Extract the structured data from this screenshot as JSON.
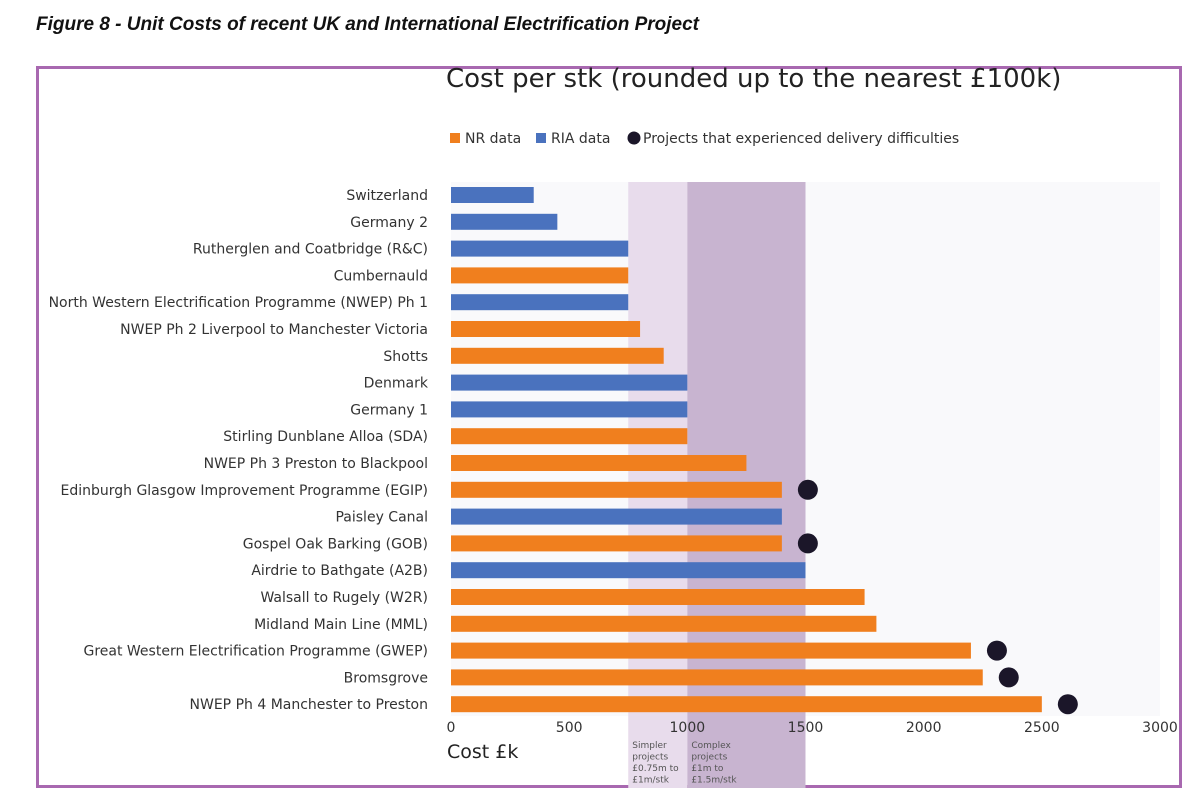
{
  "figure_title": "Figure 8 - Unit Costs of recent UK and International Electrification Project",
  "colors": {
    "nr": "#f07f1e",
    "ria": "#4a72be",
    "difficulty": "#1b1629",
    "band_simple": "#e8dcec",
    "band_complex": "#c8b4d0",
    "plot_bg": "#f9f9fb",
    "frame": "#a868b0"
  },
  "chart_data": {
    "type": "bar",
    "orientation": "horizontal",
    "title": "Cost per stk (rounded up to the nearest £100k)",
    "xlabel": "Cost £k",
    "xlim": [
      0,
      3000
    ],
    "xticks": [
      "0",
      "500",
      "1000",
      "1500",
      "2000",
      "2500",
      "3000"
    ],
    "grid": false,
    "legend": {
      "placement": "top",
      "entries": [
        {
          "key": "nr",
          "label": "NR data",
          "shape": "square"
        },
        {
          "key": "ria",
          "label": "RIA data",
          "shape": "square"
        },
        {
          "key": "difficulty",
          "label": "Projects that experienced delivery difficulties",
          "shape": "circle"
        }
      ]
    },
    "bands": [
      {
        "from": 750,
        "to": 1000,
        "label": [
          "Simpler",
          "projects",
          "£0.75m to",
          "£1m/stk"
        ],
        "color_key": "band_simple"
      },
      {
        "from": 1000,
        "to": 1500,
        "label": [
          "Complex",
          "projects",
          "£1m to",
          "£1.5m/stk"
        ],
        "color_key": "band_complex"
      }
    ],
    "bars": [
      {
        "label": "Switzerland",
        "value": 350,
        "source": "ria",
        "difficulty": false
      },
      {
        "label": "Germany 2",
        "value": 450,
        "source": "ria",
        "difficulty": false
      },
      {
        "label": "Rutherglen and Coatbridge (R&C)",
        "value": 750,
        "source": "ria",
        "difficulty": false
      },
      {
        "label": "Cumbernauld",
        "value": 750,
        "source": "nr",
        "difficulty": false
      },
      {
        "label": "North Western Electrification Programme (NWEP) Ph 1",
        "value": 750,
        "source": "ria",
        "difficulty": false
      },
      {
        "label": "NWEP Ph 2 Liverpool to Manchester Victoria",
        "value": 800,
        "source": "nr",
        "difficulty": false
      },
      {
        "label": "Shotts",
        "value": 900,
        "source": "nr",
        "difficulty": false
      },
      {
        "label": "Denmark",
        "value": 1000,
        "source": "ria",
        "difficulty": false
      },
      {
        "label": "Germany 1",
        "value": 1000,
        "source": "ria",
        "difficulty": false
      },
      {
        "label": "Stirling Dunblane Alloa (SDA)",
        "value": 1000,
        "source": "nr",
        "difficulty": false
      },
      {
        "label": "NWEP Ph 3 Preston to Blackpool",
        "value": 1250,
        "source": "nr",
        "difficulty": false
      },
      {
        "label": "Edinburgh Glasgow Improvement Programme (EGIP)",
        "value": 1400,
        "source": "nr",
        "difficulty": true
      },
      {
        "label": "Paisley Canal",
        "value": 1400,
        "source": "ria",
        "difficulty": false
      },
      {
        "label": "Gospel Oak Barking (GOB)",
        "value": 1400,
        "source": "nr",
        "difficulty": true
      },
      {
        "label": "Airdrie to Bathgate (A2B)",
        "value": 1500,
        "source": "ria",
        "difficulty": false
      },
      {
        "label": "Walsall to Rugely (W2R)",
        "value": 1750,
        "source": "nr",
        "difficulty": false
      },
      {
        "label": "Midland Main Line (MML)",
        "value": 1800,
        "source": "nr",
        "difficulty": false
      },
      {
        "label": "Great Western Electrification Programme (GWEP)",
        "value": 2200,
        "source": "nr",
        "difficulty": true
      },
      {
        "label": "Bromsgrove",
        "value": 2250,
        "source": "nr",
        "difficulty": true
      },
      {
        "label": "NWEP Ph 4 Manchester to Preston",
        "value": 2500,
        "source": "nr",
        "difficulty": true
      }
    ]
  }
}
